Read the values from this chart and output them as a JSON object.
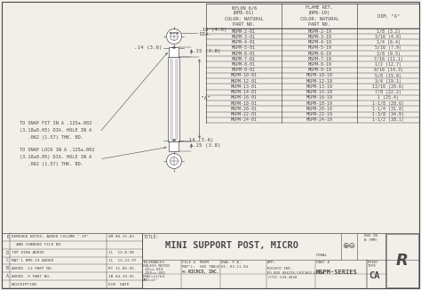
{
  "bg_color": "#f2efe9",
  "line_color": "#4a4a4a",
  "title": "MINI SUPPORT POST, MICRO",
  "part_number": "MSPM-SERIES",
  "company": "RICHCO, INC.",
  "address": "PO BOX 804238,CHICAGO,60680",
  "phone": "(773) 539-4060",
  "file_no": "MSPM",
  "date": "01: 03-11-94",
  "table_headers": [
    "NYLON 6/6\n(RMS-01)\nCOLOR: NATURAL\nPART NO.",
    "FLAME RET.\n(RMS-19)\nCOLOR: NATURAL\nPART NO.",
    "DIM. \"A\""
  ],
  "table_rows": [
    [
      "MSPM-2-01",
      "MSPM-2-19",
      "1/8 (3.2)"
    ],
    [
      "MSPM-3-01",
      "MSPM-3-19",
      "3/16 (4.8)"
    ],
    [
      "MSPM-4-01",
      "MSPM-4-19",
      "1/4 (6.4)"
    ],
    [
      "MSPM-5-01",
      "MSPM-5-19",
      "5/16 (7.9)"
    ],
    [
      "MSPM-6-01",
      "MSPM-6-19",
      "3/8 (9.5)"
    ],
    [
      "MSPM-7-01",
      "MSPM-7-19",
      "7/16 (11.1)"
    ],
    [
      "MSPM-8-01",
      "MSPM-8-19",
      "1/2 (12.7)"
    ],
    [
      "MSPM-9-01",
      "MSPM-9-19",
      "9/16 (14.3)"
    ],
    [
      "MSPM-10-01",
      "MSPM-10-19",
      "5/8 (15.9)"
    ],
    [
      "MSPM-12-01",
      "MSPM-12-19",
      "3/4 (19.1)"
    ],
    [
      "MSPM-13-01",
      "MSPM-13-19",
      "13/16 (20.6)"
    ],
    [
      "MSPM-14-01",
      "MSPM-14-19",
      "7/8 (22.2)"
    ],
    [
      "MSPM-16-01",
      "MSPM-16-19",
      "1 (25.4)"
    ],
    [
      "MSPM-18-01",
      "MSPM-18-19",
      "1-1/8 (28.6)"
    ],
    [
      "MSPM-20-01",
      "MSPM-20-19",
      "1-1/4 (31.8)"
    ],
    [
      "MSPM-22-01",
      "MSPM-22-19",
      "1-3/8 (34.9)"
    ],
    [
      "MSPM-24-01",
      "MSPM-24-19",
      "1-1/2 (38.1)"
    ]
  ],
  "revision_rows": [
    [
      "E",
      "REMOVED NOTES: ADDED COLUMN \"-19\"",
      "SM 08.15.03"
    ],
    [
      "",
      "  AND CHANGED FILE NO.",
      ""
    ],
    [
      "D",
      "TOP VIEW ADDED",
      "JL  12.8.98"
    ],
    [
      "C",
      "MAT'L RMS-19 ADDED",
      "JL  12.23.97"
    ],
    [
      "B",
      "ADDED -13 PART NO.",
      "RT 11.06.95"
    ],
    [
      "A",
      "ADDED -9 PART NO.",
      "JB 04.19.95"
    ],
    [
      "",
      "DESCRIPTION",
      "ECN  DATE"
    ]
  ]
}
